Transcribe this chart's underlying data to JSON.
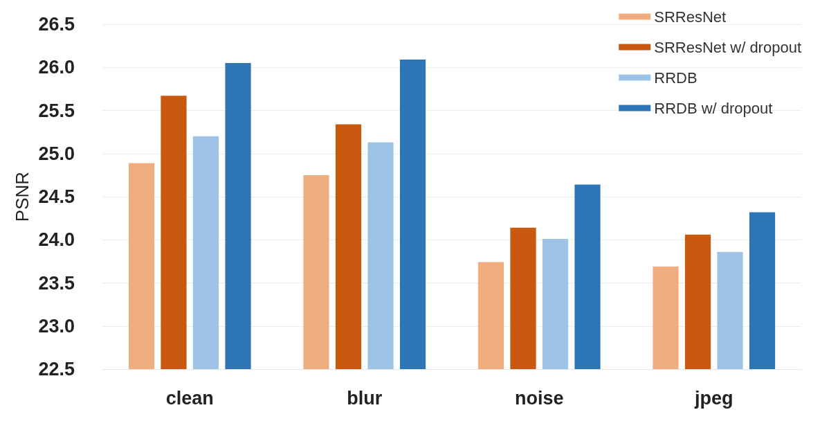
{
  "chart_data": {
    "type": "bar",
    "ylabel": "PSNR",
    "categories": [
      "clean",
      "blur",
      "noise",
      "jpeg"
    ],
    "series": [
      {
        "name": "SRResNet",
        "color": "#f0ad80",
        "values": [
          24.89,
          24.75,
          23.74,
          23.69
        ]
      },
      {
        "name": "SRResNet w/ dropout",
        "color": "#c9590f",
        "values": [
          25.67,
          25.34,
          24.14,
          24.06
        ]
      },
      {
        "name": "RRDB",
        "color": "#9dc3e6",
        "values": [
          25.2,
          25.13,
          24.01,
          23.86
        ]
      },
      {
        "name": "RRDB w/ dropout",
        "color": "#2e75b6",
        "values": [
          26.05,
          26.09,
          24.64,
          24.32
        ]
      }
    ],
    "ylim": [
      22.5,
      26.5
    ],
    "yticks": [
      {
        "value": 22.5,
        "label": "22.5"
      },
      {
        "value": 23,
        "label": "23.0"
      },
      {
        "value": 23.5,
        "label": "23.5"
      },
      {
        "value": 24,
        "label": "24.0"
      },
      {
        "value": 24.5,
        "label": "24.5"
      },
      {
        "value": 25,
        "label": "25.0"
      },
      {
        "value": 25.5,
        "label": "25.5"
      },
      {
        "value": 26,
        "label": "26.0"
      },
      {
        "value": 26.5,
        "label": "26.5"
      }
    ],
    "grid": "y",
    "legend": "top right"
  }
}
